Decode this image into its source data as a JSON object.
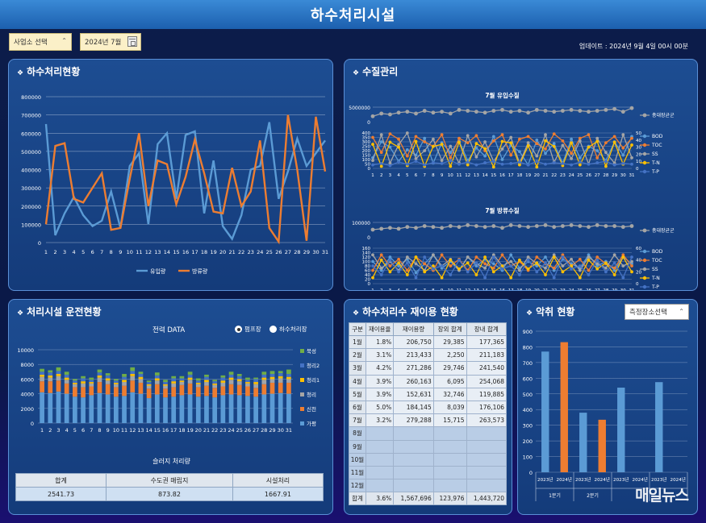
{
  "header": {
    "title": "하수처리시설"
  },
  "filters": {
    "site_select": "사업소 선택",
    "month": "2024년 7월"
  },
  "update_text": "업데이트 : 2024년 9월 4일 00시 00분",
  "panels": {
    "sewage": {
      "title": "하수처리현황"
    },
    "water": {
      "title": "수질관리"
    },
    "operation": {
      "title": "처리시설 운전현황"
    },
    "reuse": {
      "title": "하수처리수 재이용 현황"
    },
    "odor": {
      "title": "악취 현황",
      "select": "측정장소선택"
    }
  },
  "operation": {
    "subtitle": "전력 DATA",
    "radio_1": "펌프장",
    "radio_2": "하수처리장",
    "sludge_title": "슬러지 처리량",
    "sludge_headers": [
      "합계",
      "수도권 매립지",
      "시설처리"
    ],
    "sludge_values": [
      "2541.73",
      "873.82",
      "1667.91"
    ]
  },
  "reuse_table": {
    "headers": [
      "구분",
      "재이용율",
      "재이용량",
      "장외 합계",
      "장내 합계"
    ],
    "rows": [
      [
        "1월",
        "1.8%",
        "206,750",
        "29,385",
        "177,365"
      ],
      [
        "2월",
        "3.1%",
        "213,433",
        "2,250",
        "211,183"
      ],
      [
        "3월",
        "4.2%",
        "271,286",
        "29,746",
        "241,540"
      ],
      [
        "4월",
        "3.9%",
        "260,163",
        "6,095",
        "254,068"
      ],
      [
        "5월",
        "3.9%",
        "152,631",
        "32,746",
        "119,885"
      ],
      [
        "6월",
        "5.0%",
        "184,145",
        "8,039",
        "176,106"
      ],
      [
        "7월",
        "3.2%",
        "279,288",
        "15,715",
        "263,573"
      ],
      [
        "8월",
        "",
        "",
        "",
        ""
      ],
      [
        "9월",
        "",
        "",
        "",
        ""
      ],
      [
        "10월",
        "",
        "",
        "",
        ""
      ],
      [
        "11월",
        "",
        "",
        "",
        ""
      ],
      [
        "12월",
        "",
        "",
        "",
        ""
      ],
      [
        "합계",
        "3.6%",
        "1,567,696",
        "123,976",
        "1,443,720"
      ]
    ]
  },
  "watermark": "매일뉴스",
  "colors": {
    "blue": "#5b9bd5",
    "orange": "#ed7d31",
    "gray": "#a5a5a5",
    "yellow": "#ffc000",
    "green": "#70ad47",
    "navy": "#4472c4"
  },
  "chart_data": [
    {
      "id": "sewage",
      "type": "line",
      "x": [
        1,
        2,
        3,
        4,
        5,
        6,
        7,
        8,
        9,
        10,
        11,
        12,
        13,
        14,
        15,
        16,
        17,
        18,
        19,
        20,
        21,
        22,
        23,
        24,
        25,
        26,
        27,
        28,
        29,
        30,
        31
      ],
      "ylim": [
        0,
        800000
      ],
      "yticks": [
        "0",
        "100000",
        "200000",
        "300000",
        "400000",
        "500000",
        "600000",
        "700000",
        "800000"
      ],
      "series": [
        {
          "name": "유입량",
          "color": "#5b9bd5",
          "values": [
            650000,
            40000,
            160000,
            250000,
            150000,
            90000,
            120000,
            280000,
            80000,
            420000,
            490000,
            100000,
            540000,
            600000,
            240000,
            590000,
            610000,
            160000,
            450000,
            90000,
            20000,
            150000,
            400000,
            420000,
            660000,
            240000,
            390000,
            570000,
            420000,
            490000,
            560000
          ]
        },
        {
          "name": "방류량",
          "color": "#ed7d31",
          "values": [
            100000,
            530000,
            545000,
            240000,
            220000,
            300000,
            380000,
            70000,
            80000,
            350000,
            600000,
            200000,
            450000,
            430000,
            210000,
            360000,
            565000,
            380000,
            170000,
            160000,
            410000,
            200000,
            280000,
            560000,
            80000,
            5000,
            700000,
            400000,
            10000,
            690000,
            390000
          ]
        }
      ]
    },
    {
      "id": "influent_quality",
      "type": "line",
      "title": "7월 유입수질",
      "x": [
        1,
        2,
        3,
        4,
        5,
        6,
        7,
        8,
        9,
        10,
        11,
        12,
        13,
        14,
        15,
        16,
        17,
        18,
        19,
        20,
        21,
        22,
        23,
        24,
        25,
        26,
        27,
        28,
        29,
        30,
        31
      ],
      "top_ytick": "5000000",
      "left_yticks": [
        "0",
        "50",
        "100",
        "150",
        "200",
        "250",
        "300",
        "350",
        "400"
      ],
      "right_yticks": [
        "0",
        "10",
        "20",
        "30",
        "40",
        "50"
      ],
      "top_series": {
        "name": "총대장균군",
        "color": "#a5a5a5",
        "values": [
          6,
          9,
          8,
          10,
          11,
          9,
          12,
          10,
          11,
          9,
          13,
          12,
          11,
          10,
          12,
          13,
          11,
          12,
          10,
          13,
          12,
          11,
          12,
          13,
          12,
          11,
          12,
          13,
          14,
          11,
          15
        ]
      },
      "series": [
        {
          "name": "BOD",
          "color": "#5b9bd5",
          "values": [
            120,
            300,
            240,
            80,
            210,
            150,
            340,
            60,
            290,
            180,
            310,
            90,
            230,
            140,
            360,
            100,
            260,
            190,
            40,
            320,
            170,
            280,
            60,
            330,
            120,
            250,
            200,
            90,
            300,
            150,
            360
          ]
        },
        {
          "name": "TOC",
          "color": "#ed7d31",
          "values": [
            350,
            180,
            390,
            330,
            140,
            360,
            300,
            250,
            380,
            120,
            340,
            290,
            370,
            200,
            310,
            380,
            150,
            330,
            360,
            280,
            220,
            390,
            310,
            170,
            340,
            380,
            120,
            290,
            360,
            230,
            340
          ]
        },
        {
          "name": "SS",
          "color": "#a5a5a5",
          "values": [
            90,
            380,
            60,
            270,
            400,
            110,
            200,
            330,
            90,
            250,
            60,
            370,
            130,
            300,
            80,
            220,
            350,
            60,
            290,
            140,
            380,
            70,
            260,
            110,
            310,
            50,
            340,
            180,
            60,
            380,
            120
          ]
        },
        {
          "name": "T-N",
          "color": "#ffc000",
          "values": [
            34,
            3,
            37,
            30,
            4,
            38,
            3,
            31,
            34,
            3,
            37,
            5,
            35,
            28,
            2,
            38,
            36,
            5,
            32,
            2,
            39,
            31,
            4,
            36,
            5,
            30,
            38,
            3,
            37,
            6,
            33
          ]
        },
        {
          "name": "T-P",
          "color": "#4472c4",
          "values": [
            5,
            7,
            4,
            9,
            6,
            10,
            5,
            8,
            7,
            11,
            6,
            9,
            5,
            8,
            10,
            6,
            7,
            9,
            5,
            10,
            6,
            8,
            7,
            5,
            9,
            6,
            8,
            10,
            5,
            7,
            6
          ]
        }
      ]
    },
    {
      "id": "effluent_quality",
      "type": "line",
      "title": "7월 방류수질",
      "x": [
        1,
        2,
        3,
        4,
        5,
        6,
        7,
        8,
        9,
        10,
        11,
        12,
        13,
        14,
        15,
        16,
        17,
        18,
        19,
        20,
        21,
        22,
        23,
        24,
        25,
        26,
        27,
        28,
        29,
        30,
        31
      ],
      "top_ytick": "100000",
      "left_yticks": [
        "0",
        "20",
        "40",
        "60",
        "80",
        "100",
        "120",
        "140",
        "160"
      ],
      "right_yticks": [
        "0",
        "20",
        "40",
        "60"
      ],
      "top_series": {
        "name": "총대장균군",
        "color": "#a5a5a5",
        "values": [
          8,
          9,
          10,
          9,
          11,
          10,
          12,
          11,
          10,
          12,
          11,
          13,
          12,
          11,
          12,
          10,
          13,
          12,
          11,
          12,
          13,
          11,
          12,
          13,
          12,
          11,
          13,
          12,
          12,
          11,
          12
        ]
      },
      "series": [
        {
          "name": "BOD",
          "color": "#5b9bd5",
          "values": [
            100,
            60,
            120,
            80,
            110,
            50,
            90,
            130,
            70,
            100,
            60,
            120,
            80,
            110,
            90,
            60,
            130,
            70,
            100,
            80,
            120,
            60,
            110,
            90,
            70,
            130,
            80,
            100,
            60,
            120,
            90
          ]
        },
        {
          "name": "TOC",
          "color": "#ed7d31",
          "values": [
            60,
            130,
            80,
            110,
            60,
            120,
            90,
            60,
            130,
            80,
            110,
            60,
            120,
            90,
            70,
            130,
            80,
            100,
            60,
            120,
            90,
            70,
            130,
            80,
            110,
            60,
            120,
            90,
            70,
            130,
            80
          ]
        },
        {
          "name": "SS",
          "color": "#a5a5a5",
          "values": [
            130,
            70,
            100,
            60,
            120,
            90,
            60,
            130,
            80,
            110,
            60,
            120,
            90,
            70,
            130,
            80,
            100,
            60,
            120,
            90,
            70,
            130,
            80,
            110,
            60,
            120,
            90,
            70,
            130,
            80,
            100
          ]
        },
        {
          "name": "T-N",
          "color": "#ffc000",
          "values": [
            10,
            40,
            20,
            35,
            15,
            45,
            20,
            30,
            10,
            40,
            25,
            35,
            15,
            45,
            20,
            30,
            10,
            40,
            25,
            35,
            15,
            45,
            20,
            30,
            10,
            40,
            25,
            35,
            15,
            45,
            20
          ]
        },
        {
          "name": "T-P",
          "color": "#4472c4",
          "values": [
            30,
            15,
            40,
            20,
            35,
            10,
            45,
            25,
            30,
            15,
            40,
            20,
            35,
            10,
            45,
            25,
            30,
            15,
            40,
            20,
            35,
            10,
            45,
            25,
            30,
            15,
            40,
            20,
            35,
            10,
            45
          ]
        }
      ]
    },
    {
      "id": "power",
      "type": "bar",
      "stacked": true,
      "x": [
        1,
        2,
        3,
        4,
        5,
        6,
        7,
        8,
        9,
        10,
        11,
        12,
        13,
        14,
        15,
        16,
        17,
        18,
        19,
        20,
        21,
        22,
        23,
        24,
        25,
        26,
        27,
        28,
        29,
        30,
        31
      ],
      "ylim": [
        0,
        10000
      ],
      "yticks": [
        "0",
        "2000",
        "4000",
        "6000",
        "8000",
        "10000"
      ],
      "series": [
        {
          "name": "가평",
          "color": "#5b9bd5",
          "values": [
            4200,
            4100,
            4300,
            4000,
            3600,
            3500,
            3800,
            4100,
            3900,
            3600,
            3700,
            4200,
            4000,
            3400,
            3900,
            3500,
            3600,
            3800,
            3900,
            3600,
            3700,
            3500,
            3800,
            3900,
            3800,
            3700,
            3600,
            3900,
            4000,
            4100,
            4000
          ]
        },
        {
          "name": "신천",
          "color": "#ed7d31",
          "values": [
            1500,
            1600,
            1500,
            1400,
            1300,
            1400,
            1200,
            1500,
            1400,
            1300,
            1400,
            1600,
            1500,
            1300,
            1400,
            1200,
            1300,
            1400,
            1500,
            1300,
            1400,
            1300,
            1200,
            1400,
            1400,
            1300,
            1200,
            1400,
            1500,
            1400,
            1500
          ]
        },
        {
          "name": "청리",
          "color": "#a5a5a5",
          "values": [
            600,
            500,
            600,
            500,
            400,
            500,
            400,
            600,
            500,
            400,
            500,
            600,
            500,
            400,
            500,
            400,
            500,
            400,
            500,
            400,
            500,
            400,
            500,
            600,
            500,
            400,
            500,
            600,
            500,
            600,
            500
          ]
        },
        {
          "name": "청리1",
          "color": "#ffc000",
          "values": [
            300,
            300,
            300,
            300,
            200,
            300,
            200,
            300,
            300,
            200,
            300,
            300,
            300,
            200,
            300,
            200,
            300,
            200,
            300,
            200,
            300,
            200,
            300,
            300,
            300,
            200,
            300,
            300,
            300,
            300,
            300
          ]
        },
        {
          "name": "청리2",
          "color": "#4472c4",
          "values": [
            400,
            400,
            400,
            400,
            300,
            400,
            300,
            400,
            400,
            300,
            400,
            400,
            400,
            300,
            400,
            300,
            400,
            300,
            400,
            300,
            400,
            300,
            400,
            400,
            400,
            300,
            400,
            400,
            400,
            400,
            400
          ]
        },
        {
          "name": "북성",
          "color": "#70ad47",
          "values": [
            400,
            300,
            500,
            400,
            200,
            300,
            300,
            400,
            300,
            200,
            400,
            500,
            300,
            200,
            400,
            300,
            300,
            300,
            400,
            300,
            300,
            200,
            300,
            400,
            300,
            300,
            200,
            400,
            400,
            300,
            600
          ]
        }
      ]
    },
    {
      "id": "odor",
      "type": "bar",
      "ylim": [
        0,
        900
      ],
      "yticks": [
        "0",
        "100",
        "200",
        "300",
        "400",
        "500",
        "600",
        "700",
        "800",
        "900"
      ],
      "categories": [
        "2023년",
        "2024년",
        "2023년",
        "2024년",
        "2023년",
        "2024년",
        "2023년",
        "2024년"
      ],
      "groups": [
        "1분기",
        "2분기",
        "",
        ""
      ],
      "values": [
        770,
        830,
        380,
        335,
        540,
        null,
        575,
        null
      ],
      "colors": [
        "#5b9bd5",
        "#ed7d31",
        "#5b9bd5",
        "#ed7d31",
        "#5b9bd5",
        "#ed7d31",
        "#5b9bd5",
        "#ed7d31"
      ]
    }
  ]
}
